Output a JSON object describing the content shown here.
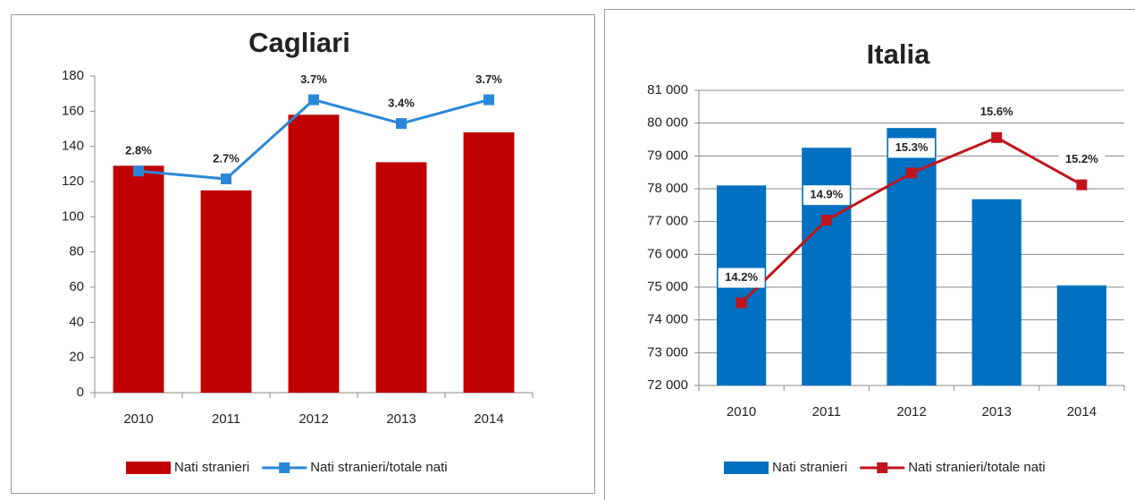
{
  "chart_data": [
    {
      "type": "bar",
      "title": "Cagliari",
      "categories": [
        "2010",
        "2011",
        "2012",
        "2013",
        "2014"
      ],
      "series": [
        {
          "name": "Nati stranieri",
          "color": "#c00000",
          "values": [
            129,
            115,
            158,
            131,
            148
          ]
        },
        {
          "name": "Nati stranieri/totale nati",
          "type": "line",
          "axis": "y2",
          "color": "#2a87d8",
          "values": [
            2.8,
            2.7,
            3.7,
            3.4,
            3.7
          ],
          "value_labels": [
            "2.8%",
            "2.7%",
            "3.7%",
            "3.4%",
            "3.7%"
          ]
        }
      ],
      "ylim": [
        0,
        180
      ],
      "yticks": [
        0,
        20,
        40,
        60,
        80,
        100,
        120,
        140,
        160,
        180
      ],
      "y2lim": [
        0,
        4
      ],
      "grid": false,
      "legend": "bottom"
    },
    {
      "type": "bar",
      "title": "Italia",
      "categories": [
        "2010",
        "2011",
        "2012",
        "2013",
        "2014"
      ],
      "series": [
        {
          "name": "Nati stranieri",
          "color": "#0070c0",
          "values": [
            78100,
            79250,
            79850,
            77680,
            75050
          ]
        },
        {
          "name": "Nati stranieri/totale nati",
          "type": "line",
          "axis": "y2",
          "color": "#c0141c",
          "values": [
            14.2,
            14.9,
            15.3,
            15.6,
            15.2
          ],
          "value_labels": [
            "14.2%",
            "14.9%",
            "15.3%",
            "15.6%",
            "15.2%"
          ]
        }
      ],
      "ylim": [
        72000,
        81000
      ],
      "yticks": [
        {
          "value": 72000,
          "label": "72 000"
        },
        {
          "value": 73000,
          "label": "73 000"
        },
        {
          "value": 74000,
          "label": "74 000"
        },
        {
          "value": 75000,
          "label": "75 000"
        },
        {
          "value": 76000,
          "label": "76 000"
        },
        {
          "value": 77000,
          "label": "77 000"
        },
        {
          "value": 78000,
          "label": "78 000"
        },
        {
          "value": 79000,
          "label": "79 000"
        },
        {
          "value": 80000,
          "label": "80 000"
        },
        {
          "value": 81000,
          "label": "81 000"
        }
      ],
      "y2lim": [
        13.5,
        16
      ],
      "grid": true,
      "legend": "bottom"
    }
  ]
}
